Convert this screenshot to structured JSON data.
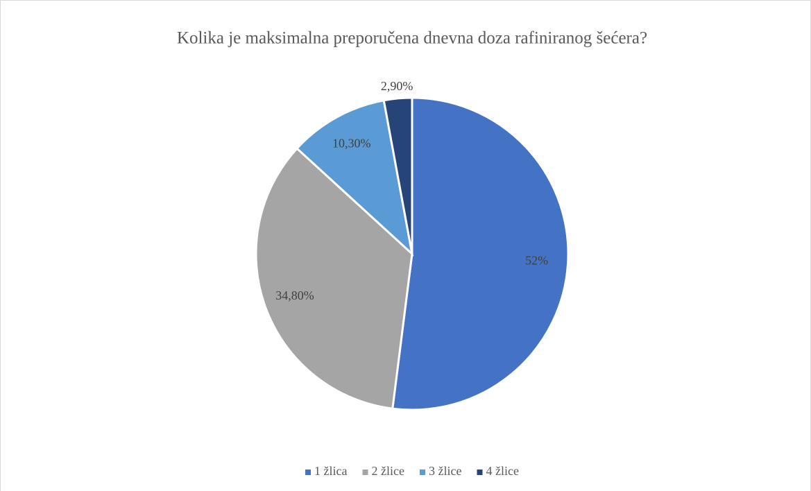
{
  "chart_data": {
    "type": "pie",
    "title": "Kolika je maksimalna preporučena dnevna doza rafiniranog šećera?",
    "categories": [
      "1 žlica",
      "2 žlice",
      "3 žlice",
      "4 žlice"
    ],
    "values": [
      52,
      34.8,
      10.3,
      2.9
    ],
    "value_labels": [
      "52%",
      "34,80%",
      "10,30%",
      "2,90%"
    ],
    "colors": [
      "#4472c4",
      "#a5a5a5",
      "#5b9bd5",
      "#264478"
    ],
    "legend": "bottom"
  }
}
